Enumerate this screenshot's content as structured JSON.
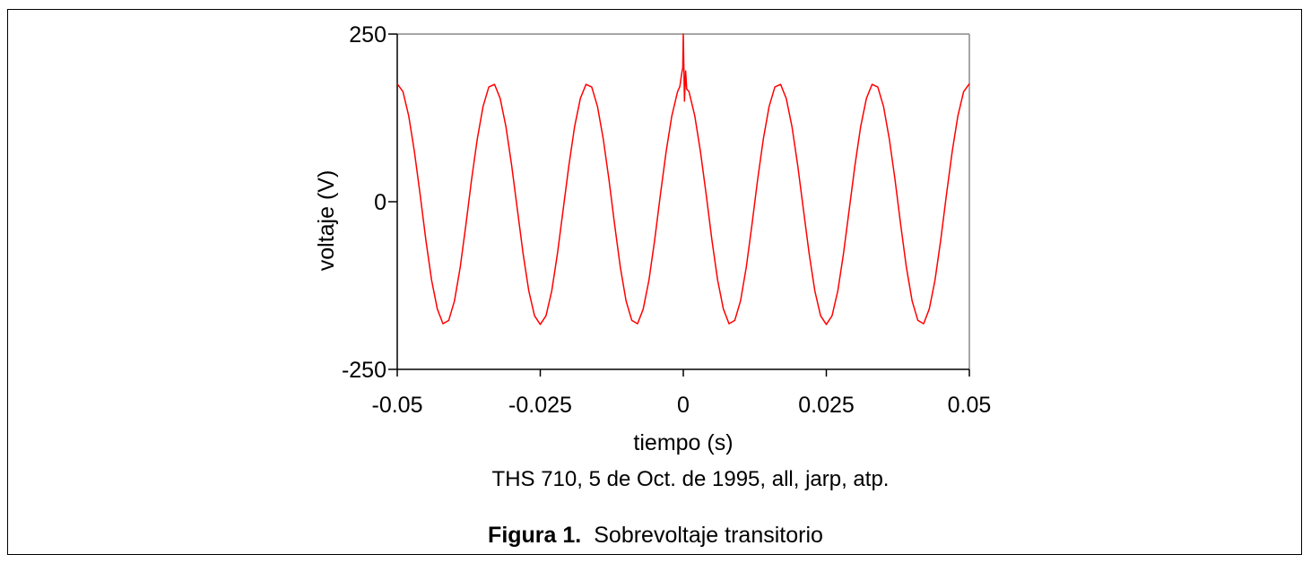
{
  "chart_data": {
    "type": "line",
    "title": "",
    "xlabel": "tiempo (s)",
    "ylabel": "voltaje (V)",
    "xlim": [
      -0.05,
      0.05
    ],
    "ylim": [
      -250,
      250
    ],
    "xticks": [
      -0.05,
      -0.025,
      0,
      0.025,
      0.05
    ],
    "xtick_labels": [
      "-0.05",
      "-0.025",
      "0",
      "0.025",
      "0.05"
    ],
    "yticks": [
      -250,
      0,
      250
    ],
    "ytick_labels": [
      "-250",
      "0",
      "250"
    ],
    "grid": false,
    "series": [
      {
        "name": "voltaje",
        "color": "#ff0000",
        "x_start": -0.05,
        "x_step": 0.001,
        "values": [
          176,
          164,
          128,
          75,
          11,
          -57,
          -117,
          -160,
          -182,
          -177,
          -148,
          -98,
          -34,
          33,
          94,
          142,
          171,
          175,
          154,
          112,
          54,
          -12,
          -78,
          -133,
          -170,
          -183,
          -170,
          -133,
          -78,
          -12,
          54,
          112,
          154,
          175,
          171,
          142,
          94,
          33,
          -34,
          -98,
          -148,
          -177,
          -182,
          -160,
          -117,
          -57,
          11,
          75,
          128,
          164,
          176,
          164,
          128,
          75,
          11,
          -57,
          -117,
          -160,
          -182,
          -177,
          -148,
          -98,
          -34,
          33,
          94,
          142,
          171,
          175,
          154,
          112,
          54,
          -12,
          -78,
          -133,
          -170,
          -183,
          -170,
          -133,
          -78,
          -12,
          54,
          112,
          154,
          175,
          171,
          142,
          94,
          33,
          -34,
          -98,
          -148,
          -177,
          -182,
          -160,
          -117,
          -57,
          11,
          75,
          128,
          164,
          176
        ],
        "spike": {
          "x": [
            -0.0006,
            -0.0003,
            -0.0001,
            0,
            0.0002,
            0.0004,
            0.0006
          ],
          "y": [
            172,
            190,
            200,
            250,
            150,
            195,
            168
          ]
        }
      }
    ]
  },
  "note": "THS 710, 5 de Oct. de 1995, all, jarp, atp.",
  "caption": {
    "label": "Figura  1.",
    "text": "Sobrevoltaje transitorio"
  }
}
